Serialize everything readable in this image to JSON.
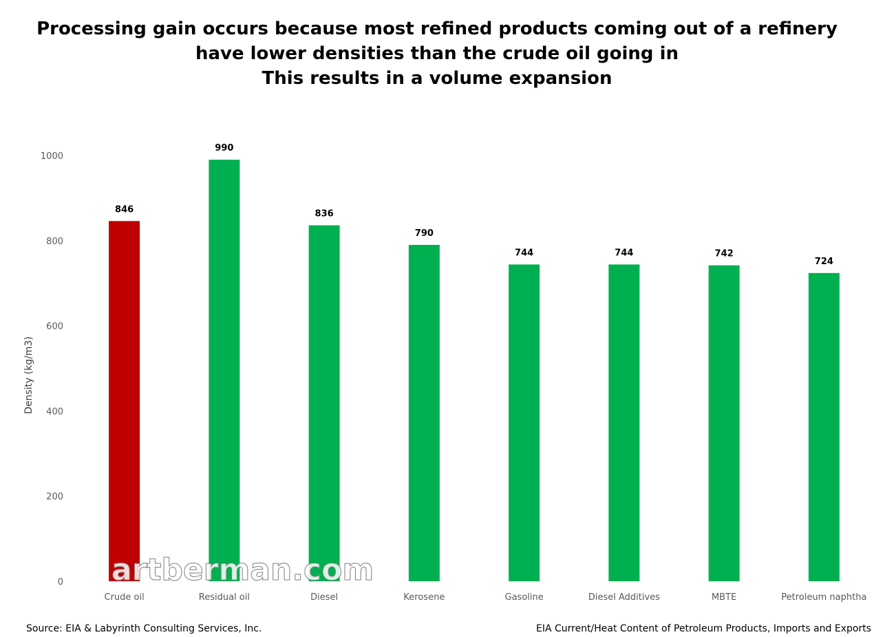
{
  "title_lines": [
    "Processing gain occurs because most refined products coming out of a refinery",
    "have lower densities than the crude oil going in",
    "This results in a volume expansion"
  ],
  "watermark": "artberman.com",
  "footer": {
    "source_left": "Source: EIA & Labyrinth Consulting Services, Inc.",
    "source_right": "EIA Current/Heat Content of Petroleum Products, Imports and Exports"
  },
  "colors": {
    "highlight": "#c00000",
    "bar": "#00b050",
    "gridline": "#d9d9d9",
    "watermark": "#ffffff"
  },
  "chart_data": {
    "type": "bar",
    "title": "Processing gain occurs because most refined products coming out of a refinery have lower densities than the crude oil going in This results in a volume expansion",
    "xlabel": "",
    "ylabel": "Density (kg/m3)",
    "ylim": [
      0,
      1000
    ],
    "yticks": [
      0,
      200,
      400,
      600,
      800,
      1000
    ],
    "grid": false,
    "categories": [
      "Crude oil",
      "Residual oil",
      "Diesel",
      "Kerosene",
      "Gasoline",
      "Diesel Additives",
      "MBTE",
      "Petroleum naphtha"
    ],
    "values": [
      846,
      990,
      836,
      790,
      744,
      744,
      742,
      724
    ],
    "bar_colors": [
      "#c00000",
      "#00b050",
      "#00b050",
      "#00b050",
      "#00b050",
      "#00b050",
      "#00b050",
      "#00b050"
    ],
    "data_labels": [
      "846",
      "990",
      "836",
      "790",
      "744",
      "744",
      "742",
      "724"
    ]
  }
}
